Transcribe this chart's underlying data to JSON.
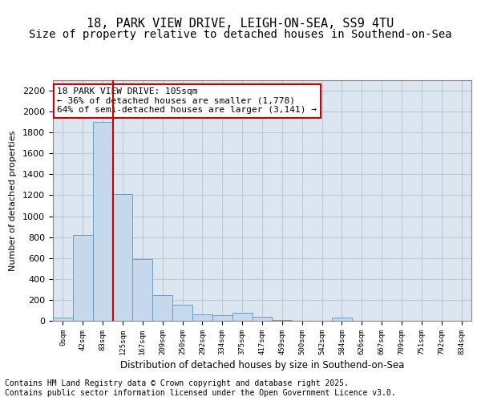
{
  "title1": "18, PARK VIEW DRIVE, LEIGH-ON-SEA, SS9 4TU",
  "title2": "Size of property relative to detached houses in Southend-on-Sea",
  "xlabel": "Distribution of detached houses by size in Southend-on-Sea",
  "ylabel": "Number of detached properties",
  "bar_color": "#c5d8ec",
  "bar_edge_color": "#6a9ec4",
  "vline_color": "#cc0000",
  "vline_x": 2.5,
  "annotation_text": "18 PARK VIEW DRIVE: 105sqm\n← 36% of detached houses are smaller (1,778)\n64% of semi-detached houses are larger (3,141) →",
  "annotation_box_color": "#ffffff",
  "annotation_box_edgecolor": "#cc0000",
  "bin_labels": [
    "0sqm",
    "42sqm",
    "83sqm",
    "125sqm",
    "167sqm",
    "209sqm",
    "250sqm",
    "292sqm",
    "334sqm",
    "375sqm",
    "417sqm",
    "459sqm",
    "500sqm",
    "542sqm",
    "584sqm",
    "626sqm",
    "667sqm",
    "709sqm",
    "751sqm",
    "792sqm",
    "834sqm"
  ],
  "bar_values": [
    30,
    820,
    1900,
    1210,
    590,
    245,
    155,
    60,
    50,
    75,
    40,
    10,
    0,
    0,
    30,
    0,
    0,
    0,
    0,
    0,
    0
  ],
  "ylim": [
    0,
    2300
  ],
  "yticks": [
    0,
    200,
    400,
    600,
    800,
    1000,
    1200,
    1400,
    1600,
    1800,
    2000,
    2200
  ],
  "grid_color": "#c0c8d8",
  "background_color": "#dce6f0",
  "footer_text": "Contains HM Land Registry data © Crown copyright and database right 2025.\nContains public sector information licensed under the Open Government Licence v3.0.",
  "title1_fontsize": 11,
  "title2_fontsize": 10,
  "annotation_fontsize": 8,
  "footer_fontsize": 7
}
